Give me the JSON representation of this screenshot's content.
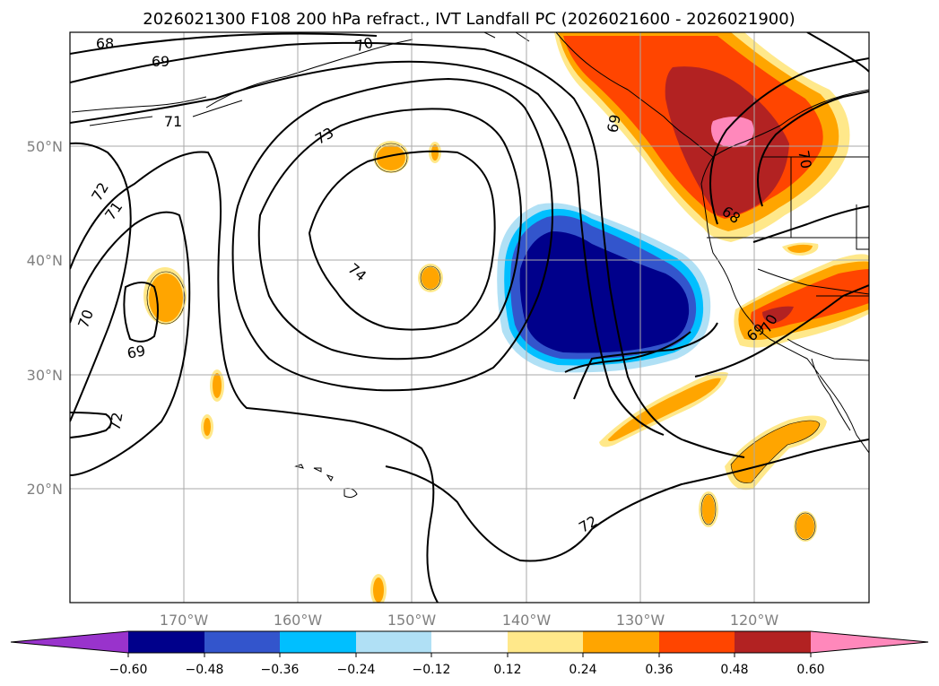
{
  "title": "2026021300 F108 200 hPa refract., IVT Landfall PC (2026021600 - 2026021900)",
  "map": {
    "lon_range": [
      -180,
      -110
    ],
    "lat_range": [
      10,
      60
    ],
    "lon_ticks": [
      "170°W",
      "160°W",
      "150°W",
      "140°W",
      "130°W",
      "120°W"
    ],
    "lat_ticks": [
      "50°N",
      "40°N",
      "30°N",
      "20°N"
    ]
  },
  "contour_labels": [
    "68",
    "69",
    "70",
    "71",
    "72",
    "73",
    "74",
    "69",
    "70",
    "71",
    "72",
    "69",
    "68",
    "70",
    "70",
    "69",
    "72"
  ],
  "colorbar": {
    "colors": [
      "#9933cc",
      "#00008b",
      "#3355cc",
      "#00bfff",
      "#b0e0f5",
      "#ffffff",
      "#ffe88a",
      "#ffa500",
      "#ff4500",
      "#b22222",
      "#ff88bb"
    ],
    "tick_labels": [
      "−0.60",
      "−0.48",
      "−0.36",
      "−0.24",
      "−0.12",
      "0.12",
      "0.24",
      "0.36",
      "0.48",
      "0.60"
    ]
  }
}
